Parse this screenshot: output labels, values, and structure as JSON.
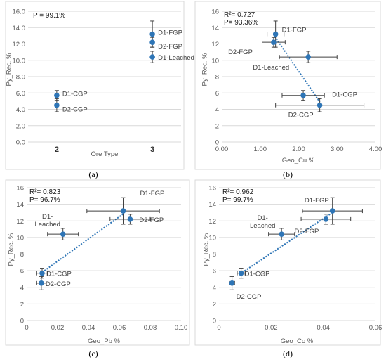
{
  "chart_data": [
    {
      "type": "scatter",
      "panel_label": "(a)",
      "xlabel": "Ore Type",
      "ylabel": "Py_Rec. %",
      "ylim": [
        0,
        16
      ],
      "yticks": [
        "0.0",
        "2.0",
        "4.0",
        "6.0",
        "8.0",
        "10.0",
        "12.0",
        "14.0",
        "16.0"
      ],
      "xticks": [
        "2",
        "3"
      ],
      "xlim": [
        1.7,
        3.3
      ],
      "annotations": [
        "P = 99.1%"
      ],
      "points": [
        {
          "label": "D1-CGP",
          "x": 2,
          "y": 5.7,
          "yerr": 0.6,
          "xerr": 0
        },
        {
          "label": "D2-CGP",
          "x": 2,
          "y": 4.5,
          "yerr": 0.8,
          "xerr": 0
        },
        {
          "label": "D1-FGP",
          "x": 3,
          "y": 13.2,
          "yerr": 1.6,
          "xerr": 0
        },
        {
          "label": "D2-FGP",
          "x": 3,
          "y": 12.2,
          "yerr": 0.6,
          "xerr": 0
        },
        {
          "label": "D1-Leached",
          "x": 3,
          "y": 10.4,
          "yerr": 0.7,
          "xerr": 0
        }
      ]
    },
    {
      "type": "scatter",
      "panel_label": "(b)",
      "xlabel": "Geo_Cu %",
      "ylabel": "Py_Rec. %",
      "ylim": [
        0,
        16
      ],
      "yticks": [
        "0",
        "2",
        "4",
        "6",
        "8",
        "10",
        "12",
        "14",
        "16"
      ],
      "xlim": [
        0,
        4
      ],
      "xticks": [
        "0.00",
        "1.00",
        "2.00",
        "3.00",
        "4.00"
      ],
      "annotations": [
        "R²= 0.727",
        "P= 93.36%"
      ],
      "trendline": {
        "x": [
          1.38,
          2.55
        ],
        "y": [
          12.9,
          4.9
        ]
      },
      "points": [
        {
          "label": "D1-FGP",
          "x": 1.4,
          "y": 13.2,
          "yerr": 1.6,
          "xerr": 0.22
        },
        {
          "label": "D2-FGP",
          "x": 1.35,
          "y": 12.2,
          "yerr": 0.6,
          "xerr": 0.3
        },
        {
          "label": "D1-Leached",
          "x": 2.25,
          "y": 10.4,
          "yerr": 0.7,
          "xerr": 0.75
        },
        {
          "label": "D1-CGP",
          "x": 2.12,
          "y": 5.7,
          "yerr": 0.6,
          "xerr": 0.55
        },
        {
          "label": "D2-CGP",
          "x": 2.55,
          "y": 4.5,
          "yerr": 0.8,
          "xerr": 1.15
        }
      ]
    },
    {
      "type": "scatter",
      "panel_label": "(c)",
      "xlabel": "Geo_Pb %",
      "ylabel": "Py_Rec. %",
      "ylim": [
        0,
        16
      ],
      "yticks": [
        "0",
        "2",
        "4",
        "6",
        "8",
        "10",
        "12",
        "14",
        "16"
      ],
      "xlim": [
        0,
        0.1
      ],
      "xticks": [
        "0",
        "0.02",
        "0.04",
        "0.06",
        "0.08",
        "0.10"
      ],
      "annotations": [
        "R²= 0.823",
        "P= 96.7%"
      ],
      "trendline": {
        "x": [
          0.01,
          0.063
        ],
        "y": [
          5.8,
          12.9
        ]
      },
      "points": [
        {
          "label": "D1-FGP",
          "x": 0.0625,
          "y": 13.2,
          "yerr": 1.6,
          "xerr": 0.0235
        },
        {
          "label": "D2-FGP",
          "x": 0.067,
          "y": 12.2,
          "yerr": 0.6,
          "xerr": 0.013
        },
        {
          "label": "D1-\nLeached",
          "x": 0.0235,
          "y": 10.4,
          "yerr": 0.7,
          "xerr": 0.01
        },
        {
          "label": "D1-CGP",
          "x": 0.01,
          "y": 5.7,
          "yerr": 0.6,
          "xerr": 0.0035
        },
        {
          "label": "D2-CGP",
          "x": 0.0095,
          "y": 4.5,
          "yerr": 0.8,
          "xerr": 0.003
        }
      ]
    },
    {
      "type": "scatter",
      "panel_label": "(d)",
      "xlabel": "Geo_Co %",
      "ylabel": "Py_Rec. %",
      "ylim": [
        0,
        16
      ],
      "yticks": [
        "0",
        "2",
        "4",
        "6",
        "8",
        "10",
        "12",
        "14",
        "16"
      ],
      "xlim": [
        0,
        0.06
      ],
      "xticks": [
        "0",
        "0.02",
        "0.04",
        "0.06"
      ],
      "annotations": [
        "R²= 0.962",
        "P= 99.7%"
      ],
      "trendline": {
        "x": [
          0.008,
          0.043
        ],
        "y": [
          5.6,
          12.9
        ]
      },
      "points": [
        {
          "label": "D1-FGP",
          "x": 0.0435,
          "y": 13.2,
          "yerr": 1.6,
          "xerr": 0.0115
        },
        {
          "label": "D2-FGP",
          "x": 0.041,
          "y": 12.2,
          "yerr": 0.6,
          "xerr": 0.0095
        },
        {
          "label": "D1-\nLeached",
          "x": 0.024,
          "y": 10.4,
          "yerr": 0.7,
          "xerr": 0.005
        },
        {
          "label": "D1-CGP",
          "x": 0.0085,
          "y": 5.7,
          "yerr": 0.6,
          "xerr": 0.0015
        },
        {
          "label": "D2-CGP",
          "x": 0.005,
          "y": 4.5,
          "yerr": 0.8,
          "xerr": 0.001
        }
      ]
    }
  ]
}
